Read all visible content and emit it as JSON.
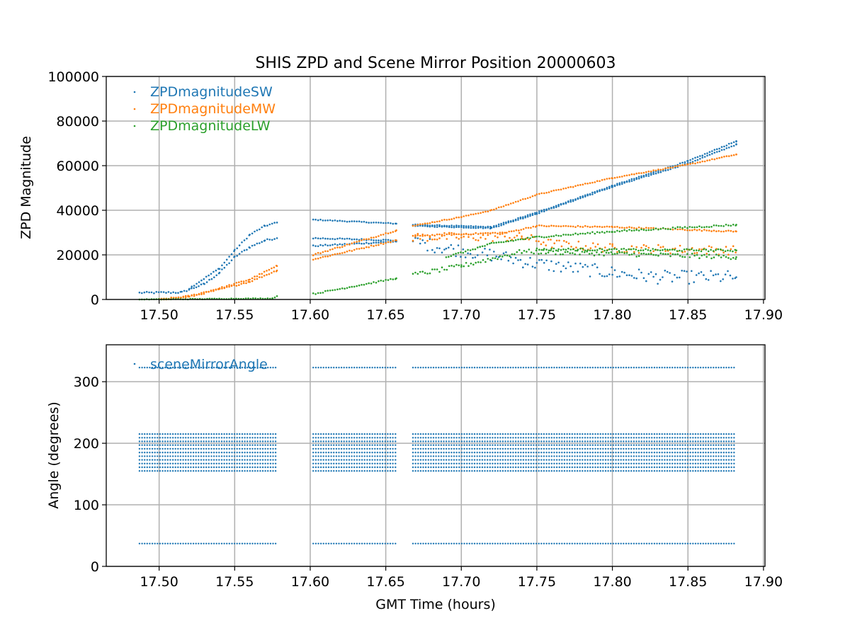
{
  "chart_data": [
    {
      "type": "scatter",
      "title": "SHIS ZPD and Scene Mirror Position 20000603",
      "xlabel": "",
      "ylabel": "ZPD Magnitude",
      "xlim": [
        17.465,
        17.901
      ],
      "ylim": [
        0,
        100000
      ],
      "xticks": [
        "17.50",
        "17.55",
        "17.60",
        "17.65",
        "17.70",
        "17.75",
        "17.80",
        "17.85",
        "17.90"
      ],
      "yticks": [
        "0",
        "20000",
        "40000",
        "60000",
        "80000",
        "100000"
      ],
      "grid": true,
      "legend_position": "top-left",
      "series": [
        {
          "name": "ZPDmagnitudeSW",
          "color": "#1f77b4",
          "traces": [
            {
              "noise": 400,
              "points": [
                [
                  17.487,
                  3000
                ],
                [
                  17.515,
                  3200
                ],
                [
                  17.53,
                  7000
                ],
                [
                  17.54,
                  12000
                ],
                [
                  17.55,
                  19000
                ],
                [
                  17.56,
                  23500
                ],
                [
                  17.57,
                  26500
                ],
                [
                  17.578,
                  27500
                ]
              ]
            },
            {
              "noise": 300,
              "points": [
                [
                  17.52,
                  5000
                ],
                [
                  17.54,
                  14000
                ],
                [
                  17.55,
                  22000
                ],
                [
                  17.56,
                  29000
                ],
                [
                  17.57,
                  33000
                ],
                [
                  17.578,
                  34500
                ]
              ]
            },
            {
              "noise": 200,
              "points": [
                [
                  17.602,
                  35800
                ],
                [
                  17.657,
                  34000
                ]
              ]
            },
            {
              "noise": 300,
              "points": [
                [
                  17.602,
                  27500
                ],
                [
                  17.657,
                  26500
                ]
              ]
            },
            {
              "noise": 300,
              "points": [
                [
                  17.602,
                  24000
                ],
                [
                  17.657,
                  26000
                ]
              ]
            },
            {
              "noise": 200,
              "points": [
                [
                  17.668,
                  33500
                ],
                [
                  17.72,
                  32500
                ],
                [
                  17.75,
                  39000
                ],
                [
                  17.8,
                  51000
                ],
                [
                  17.85,
                  62000
                ],
                [
                  17.882,
                  71000
                ]
              ]
            },
            {
              "noise": 200,
              "points": [
                [
                  17.668,
                  33000
                ],
                [
                  17.72,
                  32000
                ],
                [
                  17.75,
                  38500
                ],
                [
                  17.8,
                  50500
                ],
                [
                  17.85,
                  61000
                ],
                [
                  17.882,
                  69500
                ]
              ]
            },
            {
              "noise": 3000,
              "points": [
                [
                  17.668,
                  26000
                ],
                [
                  17.69,
                  23000
                ],
                [
                  17.72,
                  20000
                ],
                [
                  17.75,
                  16000
                ],
                [
                  17.8,
                  12000
                ],
                [
                  17.83,
                  10000
                ],
                [
                  17.882,
                  10000
                ]
              ]
            }
          ]
        },
        {
          "name": "ZPDmagnitudeMW",
          "color": "#ff7f0e",
          "traces": [
            {
              "noise": 300,
              "points": [
                [
                  17.5,
                  0
                ],
                [
                  17.52,
                  1500
                ],
                [
                  17.54,
                  5000
                ],
                [
                  17.56,
                  9000
                ],
                [
                  17.578,
                  15000
                ]
              ]
            },
            {
              "noise": 300,
              "points": [
                [
                  17.5,
                  0
                ],
                [
                  17.52,
                  1200
                ],
                [
                  17.54,
                  4500
                ],
                [
                  17.56,
                  8000
                ],
                [
                  17.578,
                  13000
                ]
              ]
            },
            {
              "noise": 300,
              "points": [
                [
                  17.602,
                  18000
                ],
                [
                  17.657,
                  26500
                ]
              ]
            },
            {
              "noise": 300,
              "points": [
                [
                  17.602,
                  20000
                ],
                [
                  17.657,
                  31000
                ]
              ]
            },
            {
              "noise": 200,
              "points": [
                [
                  17.668,
                  33000
                ],
                [
                  17.7,
                  37000
                ],
                [
                  17.72,
                  40000
                ],
                [
                  17.75,
                  47000
                ],
                [
                  17.8,
                  54500
                ],
                [
                  17.85,
                  60500
                ],
                [
                  17.882,
                  65000
                ]
              ]
            },
            {
              "noise": 300,
              "points": [
                [
                  17.668,
                  28500
                ],
                [
                  17.73,
                  30000
                ],
                [
                  17.75,
                  33000
                ],
                [
                  17.8,
                  32500
                ],
                [
                  17.882,
                  30500
                ]
              ]
            },
            {
              "noise": 2000,
              "points": [
                [
                  17.668,
                  28000
                ],
                [
                  17.7,
                  28000
                ],
                [
                  17.74,
                  28000
                ],
                [
                  17.76,
                  25000
                ],
                [
                  17.8,
                  23000
                ],
                [
                  17.882,
                  22000
                ]
              ]
            }
          ]
        },
        {
          "name": "ZPDmagnitudeLW",
          "color": "#2ca02c",
          "traces": [
            {
              "noise": 150,
              "points": [
                [
                  17.487,
                  0
                ],
                [
                  17.575,
                  500
                ],
                [
                  17.578,
                  1500
                ]
              ]
            },
            {
              "noise": 300,
              "points": [
                [
                  17.602,
                  2500
                ],
                [
                  17.657,
                  9500
                ]
              ]
            },
            {
              "noise": 1000,
              "points": [
                [
                  17.668,
                  11000
                ],
                [
                  17.7,
                  15000
                ],
                [
                  17.74,
                  21500
                ],
                [
                  17.8,
                  20500
                ],
                [
                  17.882,
                  19000
                ]
              ]
            },
            {
              "noise": 400,
              "points": [
                [
                  17.69,
                  19000
                ],
                [
                  17.72,
                  25000
                ],
                [
                  17.75,
                  28000
                ],
                [
                  17.8,
                  30500
                ],
                [
                  17.882,
                  33500
                ]
              ]
            },
            {
              "noise": 500,
              "points": [
                [
                  17.75,
                  22500
                ],
                [
                  17.882,
                  22000
                ]
              ]
            }
          ]
        }
      ]
    },
    {
      "type": "scatter",
      "title": "",
      "xlabel": "GMT Time (hours)",
      "ylabel": "Angle (degrees)",
      "xlim": [
        17.465,
        17.901
      ],
      "ylim": [
        0,
        360
      ],
      "xticks": [
        "17.50",
        "17.55",
        "17.60",
        "17.65",
        "17.70",
        "17.75",
        "17.80",
        "17.85",
        "17.90"
      ],
      "yticks": [
        "0",
        "100",
        "200",
        "300"
      ],
      "grid": true,
      "legend_position": "top-left",
      "series": [
        {
          "name": "sceneMirrorAngle",
          "color": "#1f77b4",
          "segments": [
            [
              17.487,
              17.578
            ],
            [
              17.602,
              17.657
            ],
            [
              17.668,
              17.882
            ]
          ],
          "scan_period_hours": 0.0017,
          "angle_levels": [
            37,
            155,
            161,
            167,
            173,
            179,
            185,
            191,
            197,
            203,
            209,
            215,
            323
          ]
        }
      ]
    }
  ]
}
